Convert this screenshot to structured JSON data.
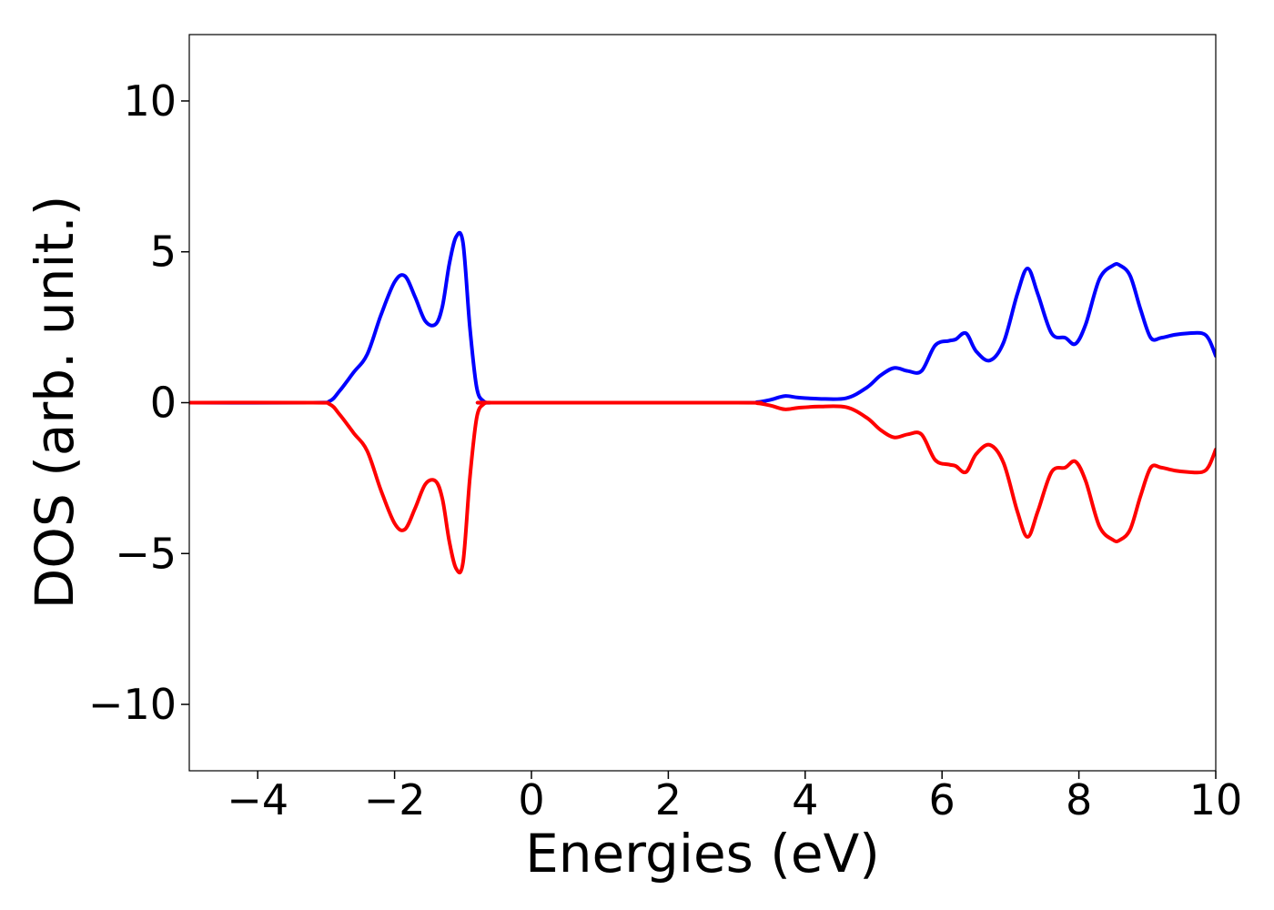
{
  "chart_data": {
    "type": "line",
    "xlabel": "Energies (eV)",
    "ylabel": "DOS (arb. unit.)",
    "xlim": [
      -5,
      10
    ],
    "ylim": [
      -12.2,
      12.2
    ],
    "grid": false,
    "legend": "none",
    "x_ticks": [
      -4,
      -2,
      0,
      2,
      4,
      6,
      8,
      10
    ],
    "x_tick_labels": [
      "−4",
      "−2",
      "0",
      "2",
      "4",
      "6",
      "8",
      "10"
    ],
    "y_ticks": [
      -10,
      -5,
      0,
      5,
      10
    ],
    "y_tick_labels": [
      "−10",
      "−5",
      "0",
      "5",
      "10"
    ],
    "series": [
      {
        "color": "#0000ff",
        "x": [
          -5.0,
          -3.2,
          -2.95,
          -2.8,
          -2.6,
          -2.4,
          -2.2,
          -2.0,
          -1.85,
          -1.7,
          -1.55,
          -1.4,
          -1.3,
          -1.2,
          -1.1,
          -1.0,
          -0.9,
          -0.8,
          -0.7,
          -0.6,
          -0.5,
          3.0,
          3.3,
          3.5,
          3.7,
          3.9,
          4.2,
          4.6,
          4.9,
          5.1,
          5.3,
          5.5,
          5.7,
          5.9,
          6.1,
          6.2,
          6.35,
          6.5,
          6.7,
          6.9,
          7.1,
          7.25,
          7.4,
          7.6,
          7.8,
          7.95,
          8.1,
          8.3,
          8.5,
          8.6,
          8.75,
          8.9,
          9.05,
          9.2,
          9.4,
          9.6,
          9.8,
          9.9,
          10.0
        ],
        "values": [
          0.0,
          0.0,
          0.05,
          0.4,
          1.0,
          1.6,
          2.9,
          4.0,
          4.2,
          3.5,
          2.7,
          2.6,
          3.2,
          4.6,
          5.5,
          5.3,
          2.5,
          0.5,
          0.05,
          0.0,
          0.0,
          0.0,
          0.02,
          0.1,
          0.22,
          0.17,
          0.13,
          0.15,
          0.5,
          0.9,
          1.15,
          1.05,
          1.05,
          1.9,
          2.05,
          2.1,
          2.3,
          1.7,
          1.4,
          2.0,
          3.6,
          4.45,
          3.6,
          2.3,
          2.15,
          1.95,
          2.6,
          4.1,
          4.55,
          4.55,
          4.2,
          3.1,
          2.15,
          2.15,
          2.25,
          2.3,
          2.3,
          2.1,
          1.55
        ]
      },
      {
        "color": "#ff0000",
        "x": [
          -5.0,
          -3.2,
          -2.95,
          -2.8,
          -2.6,
          -2.4,
          -2.2,
          -2.0,
          -1.85,
          -1.7,
          -1.55,
          -1.4,
          -1.3,
          -1.2,
          -1.1,
          -1.0,
          -0.9,
          -0.8,
          -0.7,
          -0.6,
          -0.5,
          3.0,
          3.3,
          3.5,
          3.7,
          3.9,
          4.2,
          4.6,
          4.9,
          5.1,
          5.3,
          5.5,
          5.7,
          5.9,
          6.1,
          6.2,
          6.35,
          6.5,
          6.7,
          6.9,
          7.1,
          7.25,
          7.4,
          7.6,
          7.8,
          7.95,
          8.1,
          8.3,
          8.5,
          8.6,
          8.75,
          8.9,
          9.05,
          9.2,
          9.4,
          9.6,
          9.8,
          9.9,
          10.0
        ],
        "values": [
          0.0,
          0.0,
          -0.05,
          -0.4,
          -1.0,
          -1.6,
          -2.9,
          -4.0,
          -4.2,
          -3.5,
          -2.7,
          -2.6,
          -3.2,
          -4.6,
          -5.5,
          -5.3,
          -2.5,
          -0.5,
          -0.05,
          0.0,
          0.0,
          0.0,
          -0.02,
          -0.1,
          -0.22,
          -0.17,
          -0.13,
          -0.15,
          -0.5,
          -0.9,
          -1.15,
          -1.05,
          -1.05,
          -1.9,
          -2.05,
          -2.1,
          -2.3,
          -1.7,
          -1.4,
          -2.0,
          -3.6,
          -4.45,
          -3.6,
          -2.3,
          -2.15,
          -1.95,
          -2.6,
          -4.1,
          -4.55,
          -4.55,
          -4.2,
          -3.1,
          -2.15,
          -2.15,
          -2.25,
          -2.3,
          -2.3,
          -2.1,
          -1.55
        ]
      }
    ]
  }
}
